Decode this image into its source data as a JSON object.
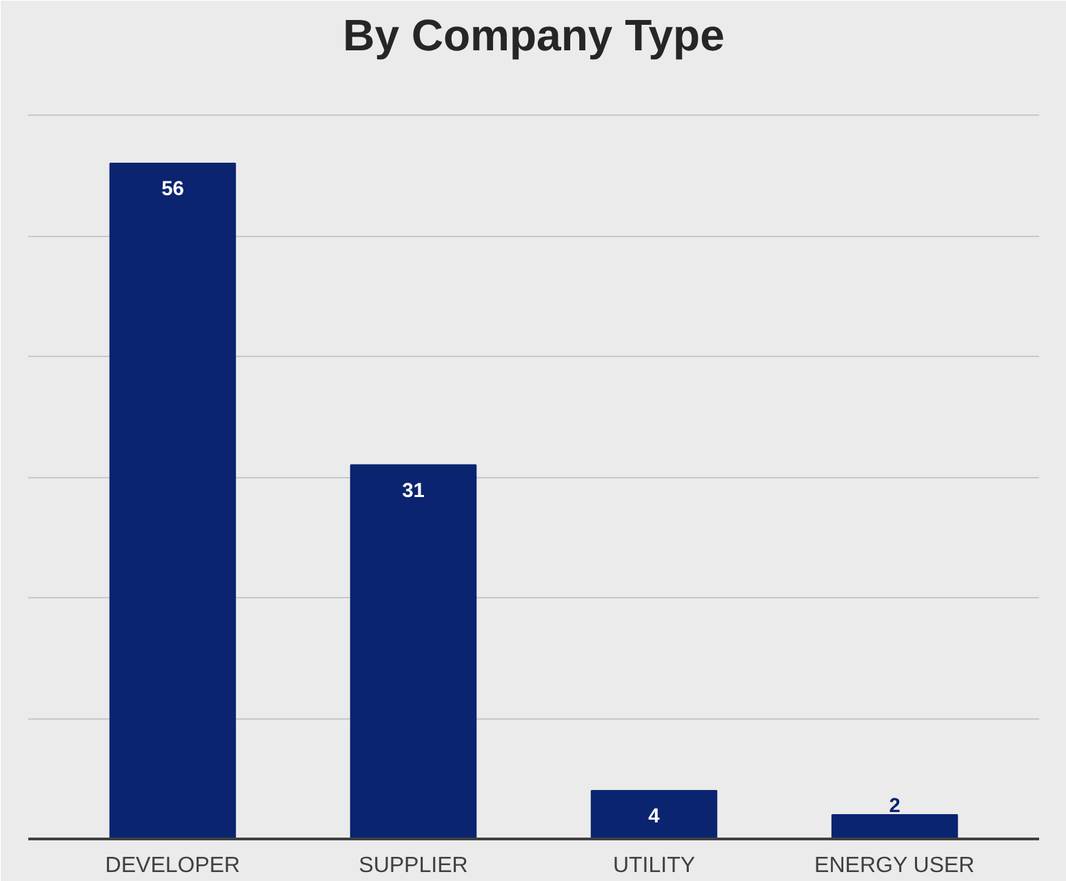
{
  "chart_data": {
    "type": "bar",
    "title": "By Company Type",
    "categories": [
      "DEVELOPER",
      "SUPPLIER",
      "UTILITY",
      "ENERGY USER"
    ],
    "values": [
      56,
      31,
      4,
      2
    ],
    "color": "#0b2470",
    "ylim": [
      0,
      64
    ],
    "yticks": [
      {
        "value": 0,
        "label": null
      },
      {
        "value": 10,
        "label": null
      },
      {
        "value": 20,
        "label": null
      },
      {
        "value": 30,
        "label": null
      },
      {
        "value": 40,
        "label": null
      },
      {
        "value": 50,
        "label": null
      },
      {
        "value": 60,
        "label": null
      }
    ],
    "grid": "y",
    "tick_labels": "x",
    "data_labels": true
  }
}
